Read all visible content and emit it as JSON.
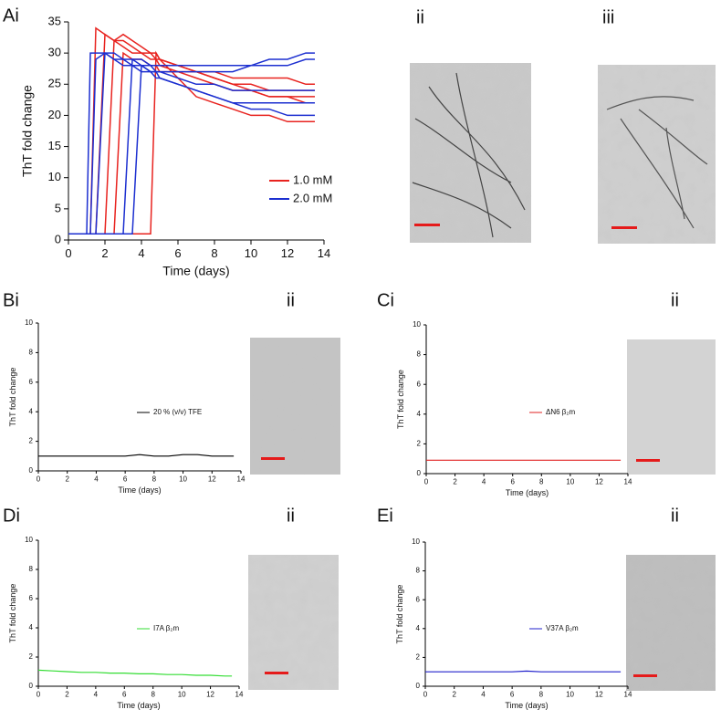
{
  "chart_data": [
    {
      "type": "line",
      "panel_label": "Ai",
      "x_label": "Time (days)",
      "y_label": "ThT fold change",
      "x": [
        0,
        1,
        1.2,
        1.5,
        2,
        2.5,
        3,
        3.5,
        4,
        4.5,
        4.8,
        5,
        6,
        7,
        8,
        9,
        10,
        11,
        12,
        13,
        13.5
      ],
      "series": [
        {
          "name": "1.0 mM",
          "color": "#e8231f",
          "traces": [
            [
              1,
              1,
              1,
              34,
              33,
              32,
              32,
              31,
              30,
              30,
              29,
              29,
              28,
              27,
              26,
              25,
              25,
              24,
              24,
              24,
              24
            ],
            [
              1,
              1,
              1,
              1,
              33,
              32,
              33,
              32,
              31,
              30,
              30,
              29,
              28,
              27,
              26,
              25,
              24,
              23,
              23,
              23,
              23
            ],
            [
              1,
              1,
              1,
              1,
              1,
              32,
              31,
              30,
              30,
              29,
              29,
              28,
              27,
              26,
              25,
              24,
              24,
              23,
              23,
              22,
              22
            ],
            [
              1,
              1,
              1,
              1,
              1,
              1,
              30,
              29,
              29,
              28,
              28,
              27,
              27,
              27,
              27,
              26,
              26,
              26,
              26,
              25,
              25
            ],
            [
              1,
              1,
              1,
              1,
              1,
              1,
              1,
              1,
              1,
              1,
              30,
              29,
              26,
              23,
              22,
              21,
              20,
              20,
              19,
              19,
              19
            ]
          ]
        },
        {
          "name": "2.0 mM",
          "color": "#1c2fd0",
          "traces": [
            [
              1,
              1,
              30,
              30,
              30,
              29,
              29,
              28,
              28,
              27,
              27,
              27,
              27,
              27,
              27,
              27,
              28,
              28,
              28,
              29,
              29
            ],
            [
              1,
              1,
              1,
              29,
              30,
              29,
              28,
              28,
              27,
              27,
              26,
              26,
              25,
              24,
              23,
              22,
              21,
              21,
              20,
              20,
              20
            ],
            [
              1,
              1,
              1,
              1,
              30,
              30,
              29,
              29,
              29,
              28,
              28,
              28,
              28,
              28,
              28,
              28,
              28,
              29,
              29,
              30,
              30
            ],
            [
              1,
              1,
              1,
              1,
              1,
              1,
              1,
              29,
              28,
              27,
              27,
              26,
              25,
              24,
              23,
              22,
              22,
              22,
              22,
              22,
              22
            ],
            [
              1,
              1,
              1,
              1,
              1,
              1,
              1,
              1,
              28,
              28,
              27,
              27,
              26,
              25,
              25,
              24,
              24,
              24,
              24,
              24,
              24
            ]
          ]
        }
      ],
      "xlim": [
        0,
        14
      ],
      "xticks": [
        0,
        2,
        4,
        6,
        8,
        10,
        12,
        14
      ],
      "ylim": [
        0,
        35
      ],
      "yticks": [
        0,
        5,
        10,
        15,
        20,
        25,
        30,
        35
      ]
    },
    {
      "type": "line",
      "panel_label": "Bi",
      "x_label": "Time (days)",
      "y_label": "ThT fold change",
      "x": [
        0,
        1,
        2,
        3,
        4,
        5,
        6,
        7,
        8,
        9,
        10,
        11,
        12,
        13,
        13.5
      ],
      "series": [
        {
          "name": "20 % (v/v) TFE",
          "color": "#000000",
          "values": [
            1,
            1,
            1,
            1,
            1,
            1,
            1,
            1.1,
            1,
            1,
            1.1,
            1.1,
            1,
            1,
            1
          ]
        }
      ],
      "xlim": [
        0,
        14
      ],
      "xticks": [
        0,
        2,
        4,
        6,
        8,
        10,
        12,
        14
      ],
      "ylim": [
        0,
        10
      ],
      "yticks": [
        0,
        2,
        4,
        6,
        8,
        10
      ]
    },
    {
      "type": "line",
      "panel_label": "Ci",
      "x_label": "Time (days)",
      "y_label": "ThT fold change",
      "x": [
        0,
        1,
        2,
        3,
        4,
        5,
        6,
        7,
        8,
        9,
        10,
        11,
        12,
        13,
        13.5
      ],
      "series": [
        {
          "name": "ΔN6 β₂m",
          "color": "#e02020",
          "values": [
            0.9,
            0.9,
            0.9,
            0.9,
            0.9,
            0.9,
            0.9,
            0.9,
            0.9,
            0.9,
            0.9,
            0.9,
            0.9,
            0.9,
            0.9
          ]
        }
      ],
      "xlim": [
        0,
        14
      ],
      "xticks": [
        0,
        2,
        4,
        6,
        8,
        10,
        12,
        14
      ],
      "ylim": [
        0,
        10
      ],
      "yticks": [
        0,
        2,
        4,
        6,
        8,
        10
      ]
    },
    {
      "type": "line",
      "panel_label": "Di",
      "x_label": "Time (days)",
      "y_label": "ThT fold change",
      "x": [
        0,
        1,
        2,
        3,
        4,
        5,
        6,
        7,
        8,
        9,
        10,
        11,
        12,
        13,
        13.5
      ],
      "series": [
        {
          "name": "I7A β₂m",
          "color": "#33dd33",
          "values": [
            1.1,
            1.05,
            1,
            0.95,
            0.95,
            0.9,
            0.9,
            0.85,
            0.85,
            0.8,
            0.8,
            0.75,
            0.75,
            0.7,
            0.7
          ]
        }
      ],
      "xlim": [
        0,
        14
      ],
      "xticks": [
        0,
        2,
        4,
        6,
        8,
        10,
        12,
        14
      ],
      "ylim": [
        0,
        10
      ],
      "yticks": [
        0,
        2,
        4,
        6,
        8,
        10
      ]
    },
    {
      "type": "line",
      "panel_label": "Ei",
      "x_label": "Time (days)",
      "y_label": "ThT fold change",
      "x": [
        0,
        1,
        2,
        3,
        4,
        5,
        6,
        7,
        8,
        9,
        10,
        11,
        12,
        13,
        13.5
      ],
      "series": [
        {
          "name": "V37A β₂m",
          "color": "#2222cc",
          "values": [
            1,
            1,
            1,
            1,
            1,
            1,
            1,
            1.05,
            1,
            1,
            1,
            1,
            1,
            1,
            1
          ]
        }
      ],
      "xlim": [
        0,
        14
      ],
      "xticks": [
        0,
        2,
        4,
        6,
        8,
        10,
        12,
        14
      ],
      "ylim": [
        0,
        10
      ],
      "yticks": [
        0,
        2,
        4,
        6,
        8,
        10
      ]
    }
  ],
  "image_labels": [
    "ii",
    "iii",
    "ii",
    "ii",
    "ii",
    "ii"
  ]
}
